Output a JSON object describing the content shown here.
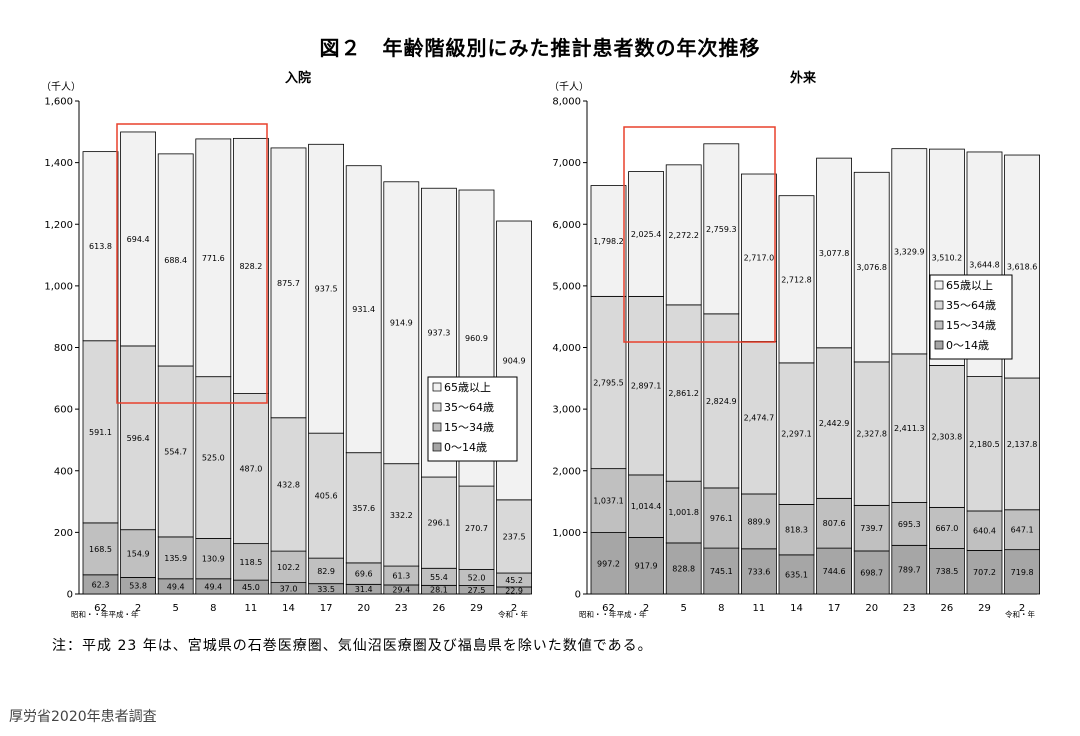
{
  "title": "図２　年齢階級別にみた推計患者数の年次推移",
  "footnote": "注：平成 23 年は、宮城県の石巻医療圏、気仙沼医療圏及び福島県を除いた数値である。",
  "source": "厚労省2020年患者調査",
  "colors": {
    "age_0_14": "#a6a6a6",
    "age_15_34": "#c0c0c0",
    "age_35_64": "#d9d9d9",
    "age_65_plus": "#f2f2f2",
    "highlight_box": "#e8412c"
  },
  "chart_data": [
    {
      "type": "bar",
      "stacked": true,
      "title": "入院",
      "ylabel": "（千人）",
      "ylim": [
        0,
        1600
      ],
      "yticks": [
        "0",
        "200",
        "400",
        "600",
        "800",
        "1,000",
        "1,200",
        "1,400",
        "1,600"
      ],
      "categories": [
        "62",
        "2",
        "5",
        "8",
        "11",
        "14",
        "17",
        "20",
        "23",
        "26",
        "29",
        "2"
      ],
      "era_labels": {
        "left": "昭和・・年平成・年",
        "right": "令和・年"
      },
      "legend": [
        "65歳以上",
        "35～64歳",
        "15～34歳",
        "0～14歳"
      ],
      "legend_position": "right-inside",
      "highlight_categories": [
        "2",
        "5",
        "8",
        "11"
      ],
      "series": [
        {
          "name": "0～14歳",
          "values": [
            62.3,
            53.8,
            49.4,
            49.4,
            45.0,
            37.0,
            33.5,
            31.4,
            29.4,
            28.1,
            27.5,
            22.9
          ],
          "labels": [
            "62.3",
            "53.8",
            "49.4",
            "49.4",
            "45.0",
            "37.0",
            "33.5",
            "31.4",
            "29.4",
            "28.1",
            "27.5",
            "22.9"
          ]
        },
        {
          "name": "15～34歳",
          "values": [
            168.5,
            154.9,
            135.9,
            130.9,
            118.5,
            102.2,
            82.9,
            69.6,
            61.3,
            55.4,
            52.0,
            45.2
          ],
          "labels": [
            "168.5",
            "154.9",
            "135.9",
            "130.9",
            "118.5",
            "102.2",
            "82.9",
            "69.6",
            "61.3",
            "55.4",
            "52.0",
            "45.2"
          ]
        },
        {
          "name": "35～64歳",
          "values": [
            591.1,
            596.4,
            554.7,
            525.0,
            487.0,
            432.8,
            405.6,
            357.6,
            332.2,
            296.1,
            270.7,
            237.5
          ],
          "labels": [
            "591.1",
            "596.4",
            "554.7",
            "525.0",
            "487.0",
            "432.8",
            "405.6",
            "357.6",
            "332.2",
            "296.1",
            "270.7",
            "237.5"
          ]
        },
        {
          "name": "65歳以上",
          "values": [
            613.8,
            694.4,
            688.4,
            771.6,
            828.2,
            875.7,
            937.5,
            931.4,
            914.9,
            937.3,
            960.9,
            904.9
          ],
          "labels": [
            "613.8",
            "694.4",
            "688.4",
            "771.6",
            "828.2",
            "875.7",
            "937.5",
            "931.4",
            "914.9",
            "937.3",
            "960.9",
            "904.9"
          ]
        }
      ]
    },
    {
      "type": "bar",
      "stacked": true,
      "title": "外来",
      "ylabel": "（千人）",
      "ylim": [
        0,
        8000
      ],
      "yticks": [
        "0",
        "1,000",
        "2,000",
        "3,000",
        "4,000",
        "5,000",
        "6,000",
        "7,000",
        "8,000"
      ],
      "categories": [
        "62",
        "2",
        "5",
        "8",
        "11",
        "14",
        "17",
        "20",
        "23",
        "26",
        "29",
        "2"
      ],
      "era_labels": {
        "left": "昭和・・年平成・年",
        "right": "令和・年"
      },
      "legend": [
        "65歳以上",
        "35～64歳",
        "15～34歳",
        "0～14歳"
      ],
      "legend_position": "right-inside",
      "highlight_categories": [
        "2",
        "5",
        "8",
        "11"
      ],
      "series": [
        {
          "name": "0～14歳",
          "values": [
            997.2,
            917.9,
            828.8,
            745.1,
            733.6,
            635.1,
            744.6,
            698.7,
            789.7,
            738.5,
            707.2,
            719.8
          ],
          "labels": [
            "997.2",
            "917.9",
            "828.8",
            "745.1",
            "733.6",
            "635.1",
            "744.6",
            "698.7",
            "789.7",
            "738.5",
            "707.2",
            "719.8"
          ]
        },
        {
          "name": "15～34歳",
          "values": [
            1037.1,
            1014.4,
            1001.8,
            976.1,
            889.9,
            818.3,
            807.6,
            739.7,
            695.3,
            667.0,
            640.4,
            647.1
          ],
          "labels": [
            "1,037.1",
            "1,014.4",
            "1,001.8",
            "976.1",
            "889.9",
            "818.3",
            "807.6",
            "739.7",
            "695.3",
            "667.0",
            "640.4",
            "647.1"
          ]
        },
        {
          "name": "35～64歳",
          "values": [
            2795.5,
            2897.1,
            2861.2,
            2824.9,
            2474.7,
            2297.1,
            2442.9,
            2327.8,
            2411.3,
            2303.8,
            2180.5,
            2137.8
          ],
          "labels": [
            "2,795.5",
            "2,897.1",
            "2,861.2",
            "2,824.9",
            "2,474.7",
            "2,297.1",
            "2,442.9",
            "2,327.8",
            "2,411.3",
            "2,303.8",
            "2,180.5",
            "2,137.8"
          ]
        },
        {
          "name": "65歳以上",
          "values": [
            1798.2,
            2025.4,
            2272.2,
            2759.3,
            2717.0,
            2712.8,
            3077.8,
            3076.8,
            3329.9,
            3510.2,
            3644.8,
            3618.6
          ],
          "labels": [
            "1,798.2",
            "2,025.4",
            "2,272.2",
            "2,759.3",
            "2,717.0",
            "2,712.8",
            "3,077.8",
            "3,076.8",
            "3,329.9",
            "3,510.2",
            "3,644.8",
            "3,618.6"
          ]
        }
      ]
    }
  ]
}
